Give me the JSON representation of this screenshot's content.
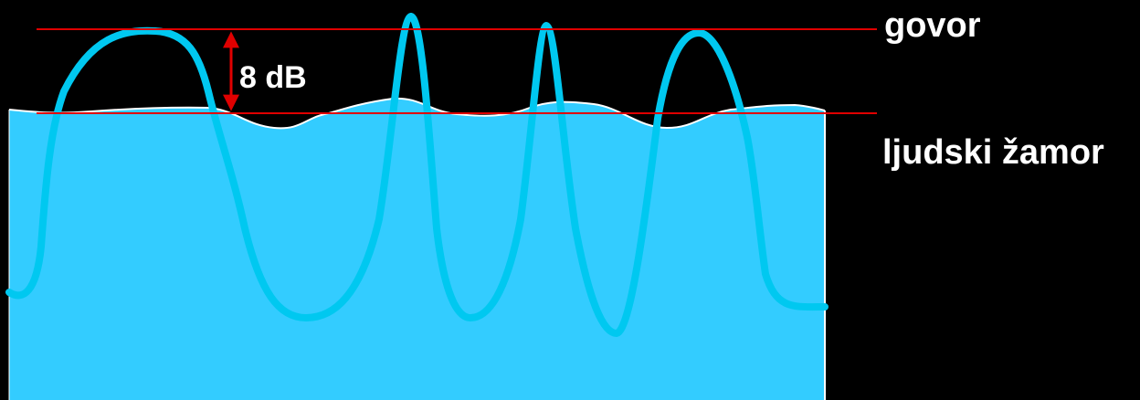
{
  "labels": {
    "speech": "govor",
    "noise": "ljudski žamor",
    "gap": "8 dB"
  },
  "colors": {
    "background": "#000000",
    "noise_fill": "#33ccff",
    "noise_edge": "#ffffff",
    "speech_wave": "#00c8f0",
    "reference_lines": "#e00000",
    "text": "#ffffff"
  }
}
